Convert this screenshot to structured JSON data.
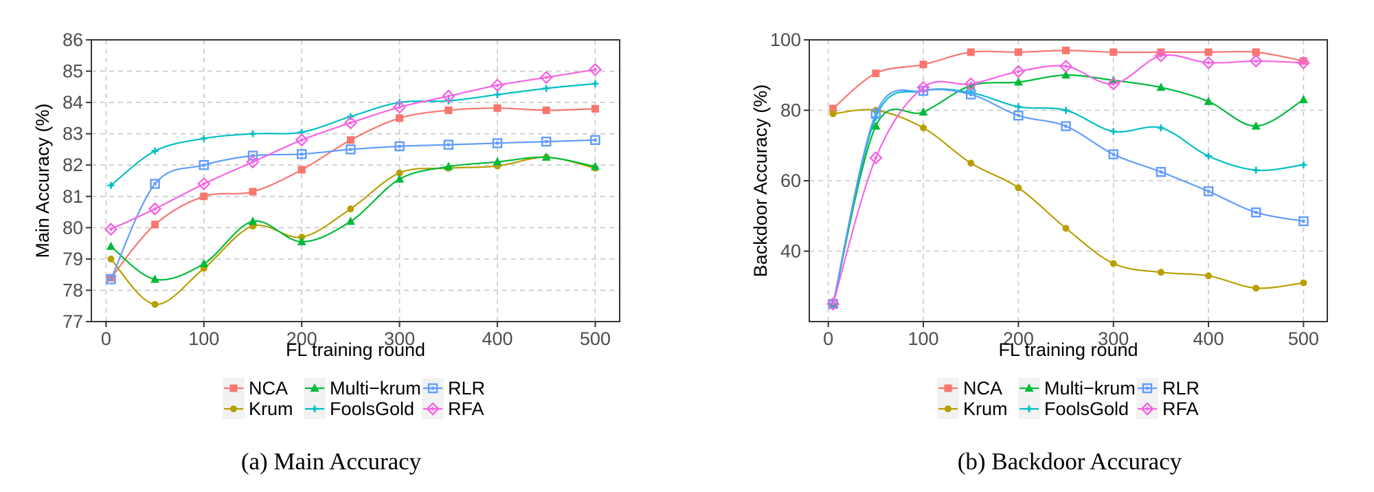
{
  "chart_data": [
    {
      "type": "line",
      "title": "",
      "xlabel": "FL training round",
      "ylabel": "Main Accuracy (%)",
      "xlim": [
        -15,
        525
      ],
      "ylim": [
        77,
        86
      ],
      "xticks": [
        0,
        100,
        200,
        300,
        400,
        500
      ],
      "yticks": [
        77,
        78,
        79,
        80,
        81,
        82,
        83,
        84,
        85,
        86
      ],
      "caption": "(a) Main Accuracy",
      "series": [
        {
          "name": "NCA",
          "color": "#F8766D",
          "marker": "square",
          "points": [
            [
              5,
              78.4
            ],
            [
              50,
              80.1
            ],
            [
              100,
              81.0
            ],
            [
              150,
              81.15
            ],
            [
              200,
              81.85
            ],
            [
              250,
              82.8
            ],
            [
              300,
              83.5
            ],
            [
              350,
              83.75
            ],
            [
              400,
              83.82
            ],
            [
              450,
              83.75
            ],
            [
              500,
              83.8
            ]
          ]
        },
        {
          "name": "Krum",
          "color": "#B79F00",
          "marker": "circle",
          "points": [
            [
              5,
              79.0
            ],
            [
              50,
              77.55
            ],
            [
              100,
              78.7
            ],
            [
              150,
              80.05
            ],
            [
              200,
              79.7
            ],
            [
              250,
              80.6
            ],
            [
              300,
              81.75
            ],
            [
              350,
              81.9
            ],
            [
              400,
              81.97
            ],
            [
              450,
              82.25
            ],
            [
              500,
              81.9
            ]
          ]
        },
        {
          "name": "Multi-krum",
          "color": "#00BA38",
          "marker": "triangle",
          "points": [
            [
              5,
              79.4
            ],
            [
              50,
              78.35
            ],
            [
              100,
              78.85
            ],
            [
              150,
              80.2
            ],
            [
              200,
              79.55
            ],
            [
              250,
              80.2
            ],
            [
              300,
              81.55
            ],
            [
              350,
              81.95
            ],
            [
              400,
              82.1
            ],
            [
              450,
              82.25
            ],
            [
              500,
              81.95
            ]
          ]
        },
        {
          "name": "FoolsGold",
          "color": "#00BFC4",
          "marker": "cross",
          "points": [
            [
              5,
              81.35
            ],
            [
              50,
              82.45
            ],
            [
              100,
              82.85
            ],
            [
              150,
              83.0
            ],
            [
              200,
              83.05
            ],
            [
              250,
              83.55
            ],
            [
              300,
              84.0
            ],
            [
              350,
              84.05
            ],
            [
              400,
              84.25
            ],
            [
              450,
              84.45
            ],
            [
              500,
              84.6
            ]
          ]
        },
        {
          "name": "RLR",
          "color": "#619CFF",
          "marker": "boxsquare",
          "points": [
            [
              5,
              78.35
            ],
            [
              50,
              81.4
            ],
            [
              100,
              82.0
            ],
            [
              150,
              82.3
            ],
            [
              200,
              82.35
            ],
            [
              250,
              82.5
            ],
            [
              300,
              82.6
            ],
            [
              350,
              82.65
            ],
            [
              400,
              82.7
            ],
            [
              450,
              82.75
            ],
            [
              500,
              82.8
            ]
          ]
        },
        {
          "name": "RFA",
          "color": "#F564E3",
          "marker": "diamond",
          "points": [
            [
              5,
              79.95
            ],
            [
              50,
              80.6
            ],
            [
              100,
              81.4
            ],
            [
              150,
              82.1
            ],
            [
              200,
              82.8
            ],
            [
              250,
              83.35
            ],
            [
              300,
              83.85
            ],
            [
              350,
              84.2
            ],
            [
              400,
              84.55
            ],
            [
              450,
              84.8
            ],
            [
              500,
              85.05
            ]
          ]
        }
      ]
    },
    {
      "type": "line",
      "title": "",
      "xlabel": "FL training round",
      "ylabel": "Backdoor Accuracy (%)",
      "xlim": [
        -20,
        525
      ],
      "ylim": [
        20,
        100
      ],
      "xticks": [
        0,
        100,
        200,
        300,
        400,
        500
      ],
      "yticks": [
        40,
        60,
        80,
        100
      ],
      "caption": "(b) Backdoor Accuracy",
      "series": [
        {
          "name": "NCA",
          "color": "#F8766D",
          "marker": "square",
          "points": [
            [
              5,
              80.5
            ],
            [
              50,
              90.5
            ],
            [
              100,
              93.0
            ],
            [
              150,
              96.5
            ],
            [
              200,
              96.5
            ],
            [
              250,
              97.0
            ],
            [
              300,
              96.5
            ],
            [
              350,
              96.5
            ],
            [
              400,
              96.5
            ],
            [
              450,
              96.5
            ],
            [
              500,
              94.0
            ]
          ]
        },
        {
          "name": "Krum",
          "color": "#B79F00",
          "marker": "circle",
          "points": [
            [
              5,
              79.0
            ],
            [
              50,
              80.0
            ],
            [
              100,
              75.0
            ],
            [
              150,
              65.0
            ],
            [
              200,
              58.0
            ],
            [
              250,
              46.5
            ],
            [
              300,
              36.5
            ],
            [
              350,
              34.0
            ],
            [
              400,
              33.0
            ],
            [
              450,
              29.5
            ],
            [
              500,
              31.0
            ]
          ]
        },
        {
          "name": "Multi-krum",
          "color": "#00BA38",
          "marker": "triangle",
          "points": [
            [
              5,
              25.0
            ],
            [
              50,
              75.5
            ],
            [
              100,
              79.5
            ],
            [
              150,
              87.0
            ],
            [
              200,
              88.0
            ],
            [
              250,
              90.0
            ],
            [
              300,
              88.5
            ],
            [
              350,
              86.5
            ],
            [
              400,
              82.5
            ],
            [
              450,
              75.5
            ],
            [
              500,
              83.0
            ]
          ]
        },
        {
          "name": "FoolsGold",
          "color": "#00BFC4",
          "marker": "cross",
          "points": [
            [
              5,
              25.0
            ],
            [
              50,
              78.0
            ],
            [
              100,
              85.5
            ],
            [
              150,
              85.0
            ],
            [
              200,
              81.0
            ],
            [
              250,
              80.0
            ],
            [
              300,
              74.0
            ],
            [
              350,
              75.0
            ],
            [
              400,
              67.0
            ],
            [
              450,
              63.0
            ],
            [
              500,
              64.5
            ]
          ]
        },
        {
          "name": "RLR",
          "color": "#619CFF",
          "marker": "boxsquare",
          "points": [
            [
              5,
              25.0
            ],
            [
              50,
              79.0
            ],
            [
              100,
              85.5
            ],
            [
              150,
              84.5
            ],
            [
              200,
              78.5
            ],
            [
              250,
              75.5
            ],
            [
              300,
              67.5
            ],
            [
              350,
              62.5
            ],
            [
              400,
              57.0
            ],
            [
              450,
              51.0
            ],
            [
              500,
              48.5
            ]
          ]
        },
        {
          "name": "RFA",
          "color": "#F564E3",
          "marker": "diamond",
          "points": [
            [
              5,
              25.0
            ],
            [
              50,
              66.5
            ],
            [
              100,
              86.5
            ],
            [
              150,
              87.5
            ],
            [
              200,
              91.0
            ],
            [
              250,
              92.5
            ],
            [
              300,
              87.5
            ],
            [
              350,
              95.5
            ],
            [
              400,
              93.5
            ],
            [
              450,
              94.0
            ],
            [
              500,
              93.5
            ]
          ]
        }
      ]
    }
  ],
  "legend": {
    "entries": [
      "NCA",
      "Multi−krum",
      "RLR",
      "Krum",
      "FoolsGold",
      "RFA"
    ]
  }
}
